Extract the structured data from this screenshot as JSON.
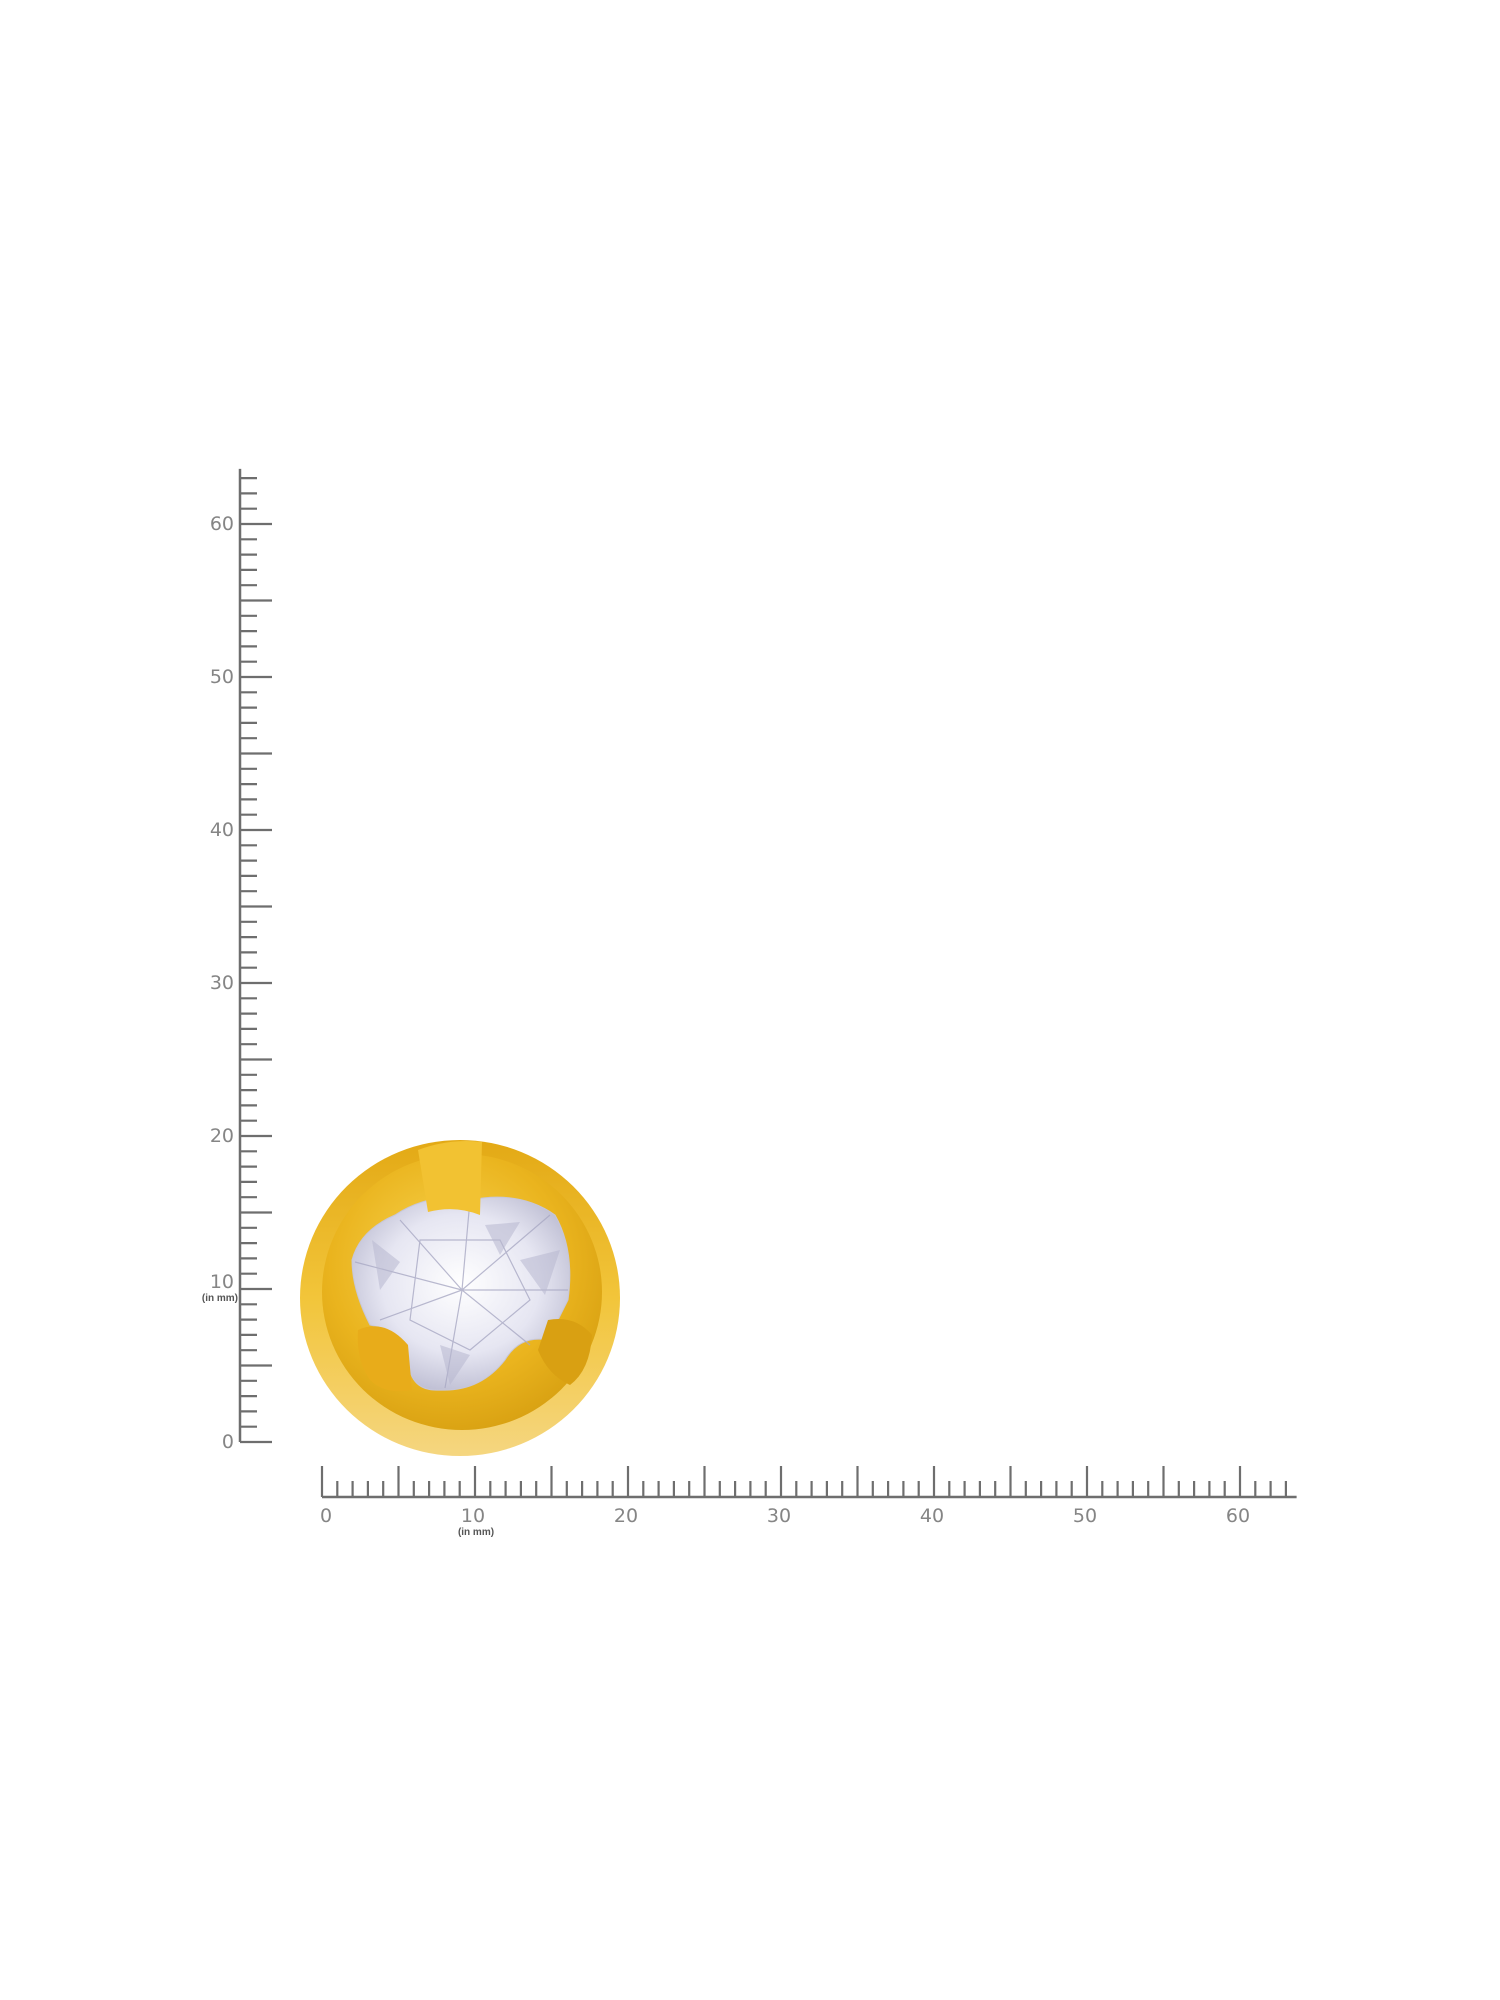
{
  "product": {
    "name": "gold-solitaire-stud-earring",
    "colors": {
      "gold": "#e9b21c",
      "gold_light": "#f6cf4a",
      "gold_dark": "#c98f0a",
      "stone": "#e4e4f0",
      "ruler": "#6e6e6e",
      "label": "#858585"
    }
  },
  "ruler": {
    "unit_label": "(in mm)",
    "vertical": {
      "labels": [
        "0",
        "10",
        "20",
        "30",
        "40",
        "50",
        "60"
      ],
      "max_mm": 63
    },
    "horizontal": {
      "labels": [
        "0",
        "10",
        "20",
        "30",
        "40",
        "50",
        "60"
      ],
      "max_mm": 63
    }
  }
}
